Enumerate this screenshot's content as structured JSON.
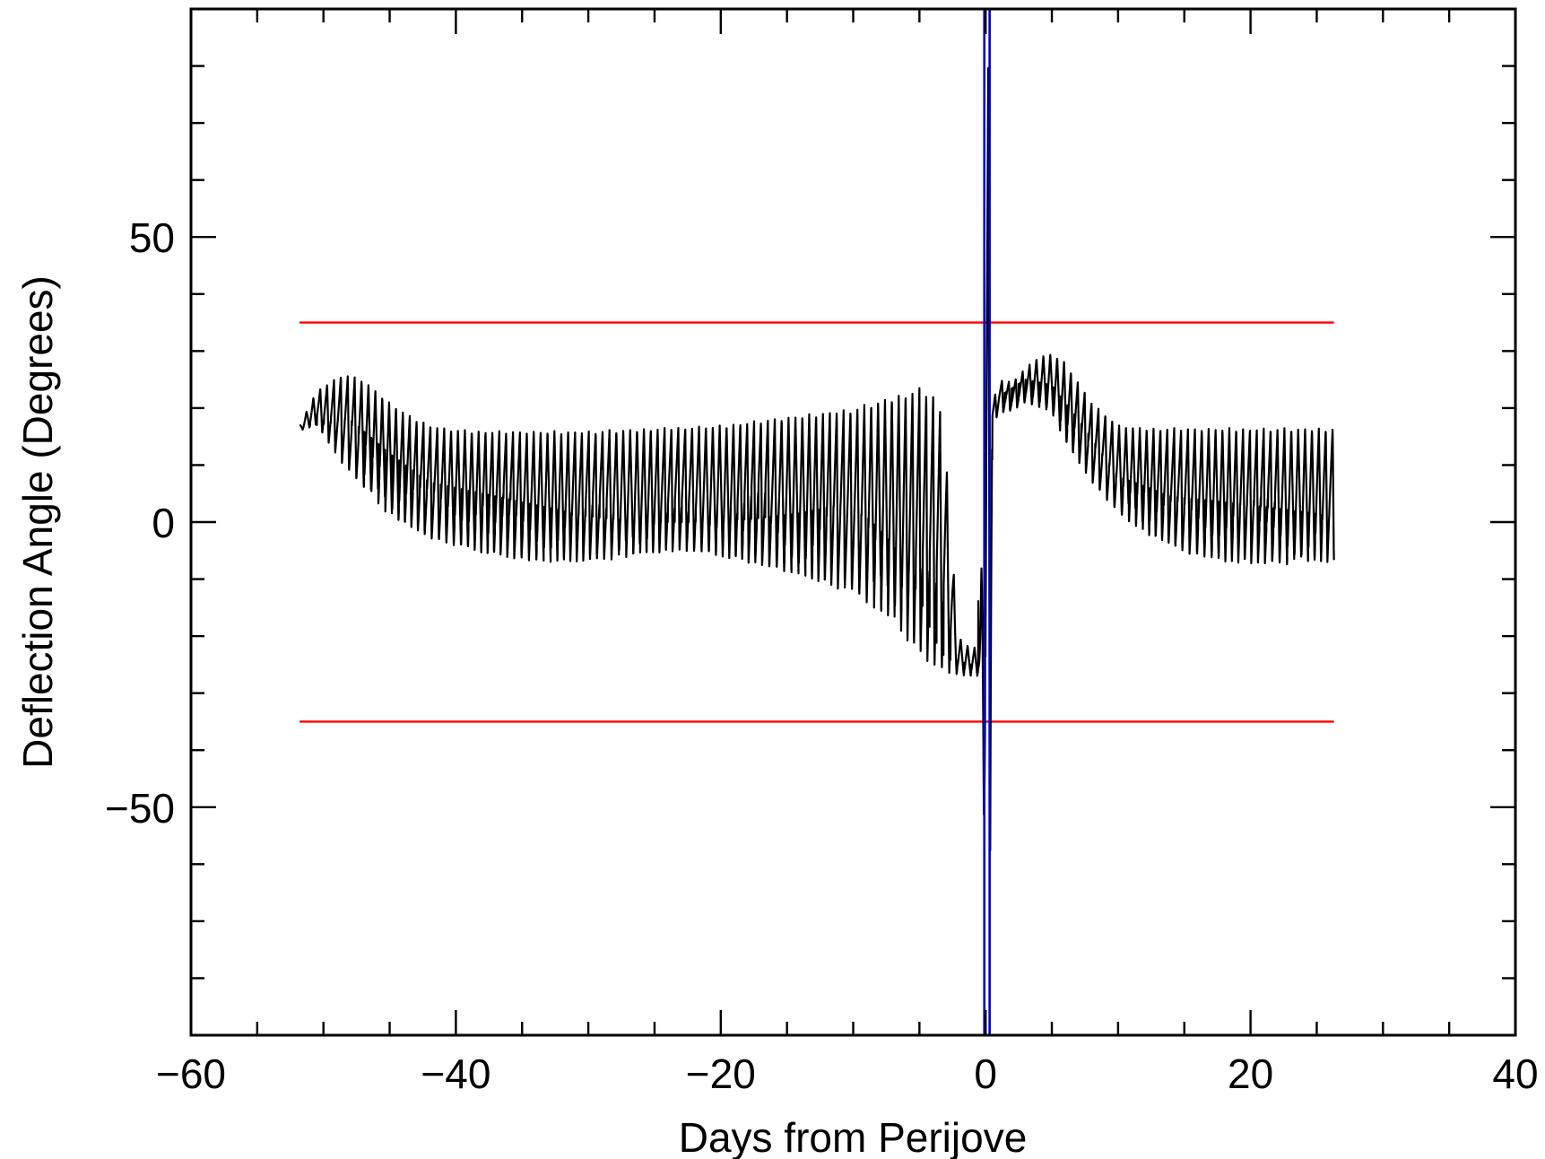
{
  "chart_data": {
    "type": "line",
    "title": "",
    "xlabel": "Days from Perijove",
    "ylabel": "Deflection Angle (Degrees)",
    "xlim": [
      -60,
      40
    ],
    "ylim": [
      -90,
      90
    ],
    "x_major_ticks": [
      -60,
      -40,
      -20,
      0,
      20,
      40
    ],
    "x_tick_labels": [
      "−60",
      "−40",
      "−20",
      "0",
      "20",
      "40"
    ],
    "x_minor_step": 5,
    "y_major_ticks": [
      -50,
      0,
      50
    ],
    "y_tick_labels": [
      "−50",
      "0",
      "50"
    ],
    "y_minor_step": 10,
    "grid": false,
    "colors": {
      "signal": "#000000",
      "threshold": "#ff0000",
      "perijove_window": "#0000cc"
    },
    "series": [
      {
        "style": "oscillating envelope",
        "x_start": -51.8,
        "x_end": 26.3,
        "upper_envelope": [
          [
            -51.8,
            17
          ],
          [
            -50.5,
            23
          ],
          [
            -48.5,
            26
          ],
          [
            -47,
            25
          ],
          [
            -45,
            21
          ],
          [
            -43,
            18
          ],
          [
            -41,
            16.5
          ],
          [
            -38,
            16
          ],
          [
            -30,
            16
          ],
          [
            -20,
            17
          ],
          [
            -10,
            20
          ],
          [
            -5,
            23.5
          ],
          [
            -4,
            22.5
          ],
          [
            -3.2,
            19
          ],
          [
            -2.6,
            -2
          ],
          [
            -2.1,
            -20
          ],
          [
            -1.2,
            -22
          ],
          [
            -0.5,
            -22
          ],
          [
            -0.1,
            10
          ],
          [
            0.05,
            80
          ],
          [
            0.3,
            82
          ],
          [
            0.45,
            20
          ],
          [
            1,
            25
          ],
          [
            2,
            24.5
          ],
          [
            3,
            27
          ],
          [
            4,
            29
          ],
          [
            5,
            29.5
          ],
          [
            6,
            28
          ],
          [
            8,
            21
          ],
          [
            10,
            17
          ],
          [
            12,
            16.5
          ],
          [
            18,
            16.5
          ],
          [
            26.3,
            16.5
          ]
        ],
        "lower_envelope": [
          [
            -51.8,
            16
          ],
          [
            -50.5,
            17
          ],
          [
            -48.5,
            10
          ],
          [
            -47,
            6
          ],
          [
            -45,
            1
          ],
          [
            -42,
            -3
          ],
          [
            -38,
            -5.5
          ],
          [
            -34,
            -7
          ],
          [
            -30,
            -7
          ],
          [
            -26,
            -6
          ],
          [
            -23,
            -5
          ],
          [
            -20,
            -6
          ],
          [
            -15,
            -9
          ],
          [
            -10,
            -12.5
          ],
          [
            -7,
            -17.5
          ],
          [
            -5.5,
            -22
          ],
          [
            -4,
            -25.5
          ],
          [
            -3,
            -26.5
          ],
          [
            -1.5,
            -27
          ],
          [
            -0.5,
            -27
          ],
          [
            -0.15,
            -50
          ],
          [
            0.05,
            -80
          ],
          [
            0.3,
            -82
          ],
          [
            0.5,
            17
          ],
          [
            1,
            19
          ],
          [
            2,
            19.5
          ],
          [
            3,
            21
          ],
          [
            5,
            19
          ],
          [
            6,
            14
          ],
          [
            8,
            7
          ],
          [
            10,
            1.5
          ],
          [
            12,
            -2
          ],
          [
            15,
            -5.5
          ],
          [
            18,
            -7
          ],
          [
            22,
            -7.5
          ],
          [
            26.3,
            -7
          ]
        ],
        "midline": [
          [
            -51.8,
            16.5
          ],
          [
            -48,
            18
          ],
          [
            -45,
            12
          ],
          [
            -42,
            7
          ],
          [
            -38,
            5
          ],
          [
            -34,
            3
          ],
          [
            -30,
            1
          ],
          [
            -26,
            0
          ],
          [
            -22,
            0
          ],
          [
            -18,
            0.5
          ],
          [
            -14,
            1.5
          ],
          [
            -11,
            3
          ],
          [
            -9,
            1
          ],
          [
            -7,
            -4
          ],
          [
            -5,
            -13
          ],
          [
            -4,
            -20
          ],
          [
            -3,
            -24
          ],
          [
            -1,
            -25
          ],
          [
            0,
            0
          ],
          [
            1,
            22
          ],
          [
            3,
            25
          ],
          [
            5,
            24
          ],
          [
            7,
            18
          ],
          [
            10,
            8
          ],
          [
            14,
            4.5
          ],
          [
            20,
            3
          ],
          [
            26.3,
            1
          ]
        ]
      }
    ],
    "horizontal_lines": [
      {
        "y": 35,
        "x_start": -51.8,
        "x_end": 26.3
      },
      {
        "y": -35,
        "x_start": -51.8,
        "x_end": 26.3
      }
    ],
    "vertical_lines": [
      {
        "x": -0.1
      },
      {
        "x": 0.3
      }
    ]
  }
}
